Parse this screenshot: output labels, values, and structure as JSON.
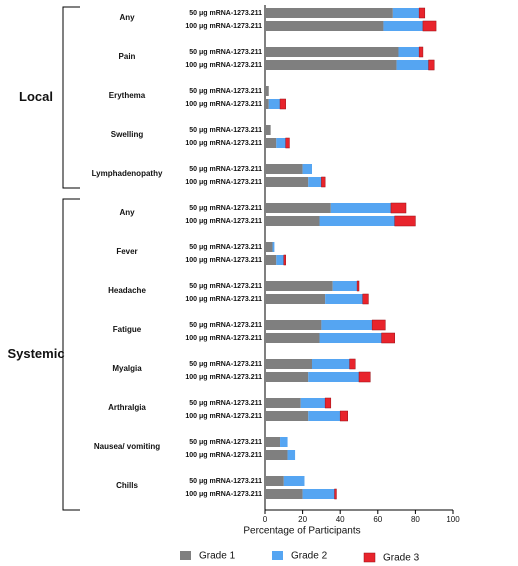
{
  "chart_data": {
    "type": "bar",
    "orientation": "horizontal",
    "stacked": true,
    "x_label": "Percentage of Participants",
    "xlim": [
      0,
      100
    ],
    "xticks": [
      0,
      20,
      40,
      60,
      80,
      100
    ],
    "groups": [
      {
        "label": "Local",
        "symptoms": [
          "Any",
          "Pain",
          "Erythema",
          "Swelling",
          "Lymphadenopathy"
        ]
      },
      {
        "label": "Systemic",
        "symptoms": [
          "Any",
          "Fever",
          "Headache",
          "Fatigue",
          "Myalgia",
          "Arthralgia",
          "Nausea/ vomiting",
          "Chills"
        ]
      }
    ],
    "categories": [
      "50 μg mRNA-1273.211",
      "100 μg mRNA-1273.211",
      "50 μg mRNA-1273.211",
      "100 μg mRNA-1273.211",
      "50 μg mRNA-1273.211",
      "100 μg mRNA-1273.211",
      "50 μg mRNA-1273.211",
      "100 μg mRNA-1273.211",
      "50 μg mRNA-1273.211",
      "100 μg mRNA-1273.211",
      "50 μg mRNA-1273.211",
      "100 μg mRNA-1273.211",
      "50 μg mRNA-1273.211",
      "100 μg mRNA-1273.211",
      "50 μg mRNA-1273.211",
      "100 μg mRNA-1273.211",
      "50 μg mRNA-1273.211",
      "100 μg mRNA-1273.211",
      "50 μg mRNA-1273.211",
      "100 μg mRNA-1273.211",
      "50 μg mRNA-1273.211",
      "100 μg mRNA-1273.211",
      "50 μg mRNA-1273.211",
      "100 μg mRNA-1273.211",
      "50 μg mRNA-1273.211",
      "100 μg mRNA-1273.211"
    ],
    "series": [
      {
        "name": "Grade 1",
        "color": "#7f7f7f",
        "values": [
          68,
          63,
          71,
          70,
          2,
          2,
          3,
          6,
          20,
          23,
          35,
          29,
          4,
          6,
          36,
          32,
          30,
          29,
          25,
          23,
          19,
          23,
          8,
          12,
          10,
          20
        ]
      },
      {
        "name": "Grade  2",
        "color": "#55a5f2",
        "values": [
          14,
          21,
          11,
          17,
          0,
          6,
          0,
          5,
          5,
          7,
          32,
          40,
          1,
          4,
          13,
          20,
          27,
          33,
          20,
          27,
          13,
          17,
          4,
          4,
          11,
          17
        ]
      },
      {
        "name": "Grade 3",
        "color": "#e8242c",
        "values": [
          3,
          7,
          2,
          3,
          0,
          3,
          0,
          2,
          0,
          2,
          8,
          11,
          0,
          1,
          1,
          3,
          7,
          7,
          3,
          6,
          3,
          4,
          0,
          0,
          0,
          1
        ]
      }
    ]
  }
}
